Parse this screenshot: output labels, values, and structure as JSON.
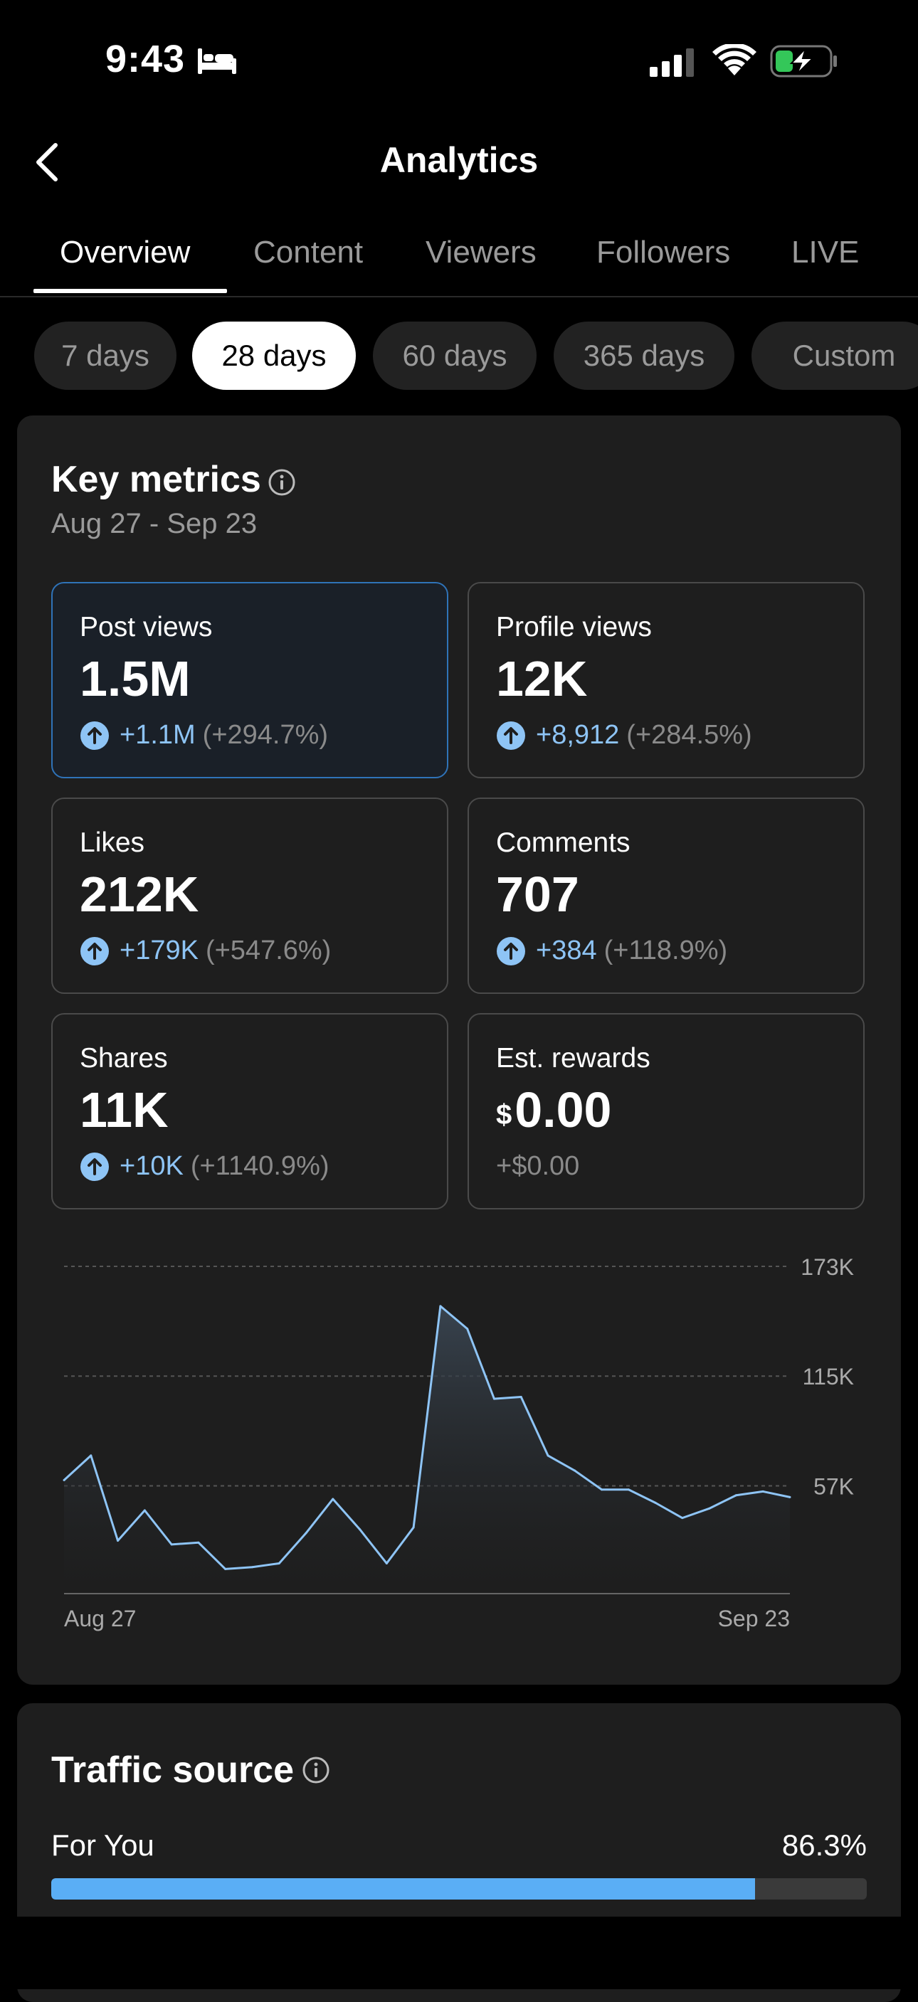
{
  "status_bar": {
    "time": "9:43"
  },
  "header": {
    "title": "Analytics"
  },
  "tabs": [
    {
      "label": "Overview",
      "active": true
    },
    {
      "label": "Content"
    },
    {
      "label": "Viewers"
    },
    {
      "label": "Followers"
    },
    {
      "label": "LIVE"
    }
  ],
  "ranges": [
    {
      "label": "7 days"
    },
    {
      "label": "28 days",
      "active": true
    },
    {
      "label": "60 days"
    },
    {
      "label": "365 days"
    },
    {
      "label": "Custom"
    }
  ],
  "key_metrics": {
    "title": "Key metrics",
    "date_range": "Aug 27 - Sep 23",
    "cards": [
      {
        "label": "Post views",
        "value": "1.5M",
        "delta": "+1.1M",
        "pct": "(+294.7%)",
        "selected": true
      },
      {
        "label": "Profile views",
        "value": "12K",
        "delta": "+8,912",
        "pct": "(+284.5%)"
      },
      {
        "label": "Likes",
        "value": "212K",
        "delta": "+179K",
        "pct": "(+547.6%)"
      },
      {
        "label": "Comments",
        "value": "707",
        "delta": "+384",
        "pct": "(+118.9%)"
      },
      {
        "label": "Shares",
        "value": "11K",
        "delta": "+10K",
        "pct": "(+1140.9%)"
      },
      {
        "label": "Est. rewards",
        "currency": "$",
        "value": "0.00",
        "delta": "+$0.00"
      }
    ]
  },
  "chart_data": {
    "type": "area",
    "x_start_label": "Aug 27",
    "x_end_label": "Sep 23",
    "y_ticks": [
      "173K",
      "115K",
      "57K"
    ],
    "y_tick_values": [
      173000,
      115000,
      57000
    ],
    "ylim": [
      0,
      173000
    ],
    "values": [
      60000,
      73000,
      28000,
      44000,
      26000,
      27000,
      13000,
      14000,
      16000,
      32000,
      50000,
      34000,
      16000,
      35000,
      152000,
      140000,
      103000,
      104000,
      73000,
      65000,
      55000,
      55000,
      48000,
      40000,
      45000,
      52000,
      54000,
      51000
    ],
    "colors": {
      "line": "#8ec4f5",
      "grid": "#555555"
    }
  },
  "traffic_source": {
    "title": "Traffic source",
    "items": [
      {
        "label": "For You",
        "value": "86.3%",
        "fraction": 0.863
      }
    ]
  }
}
